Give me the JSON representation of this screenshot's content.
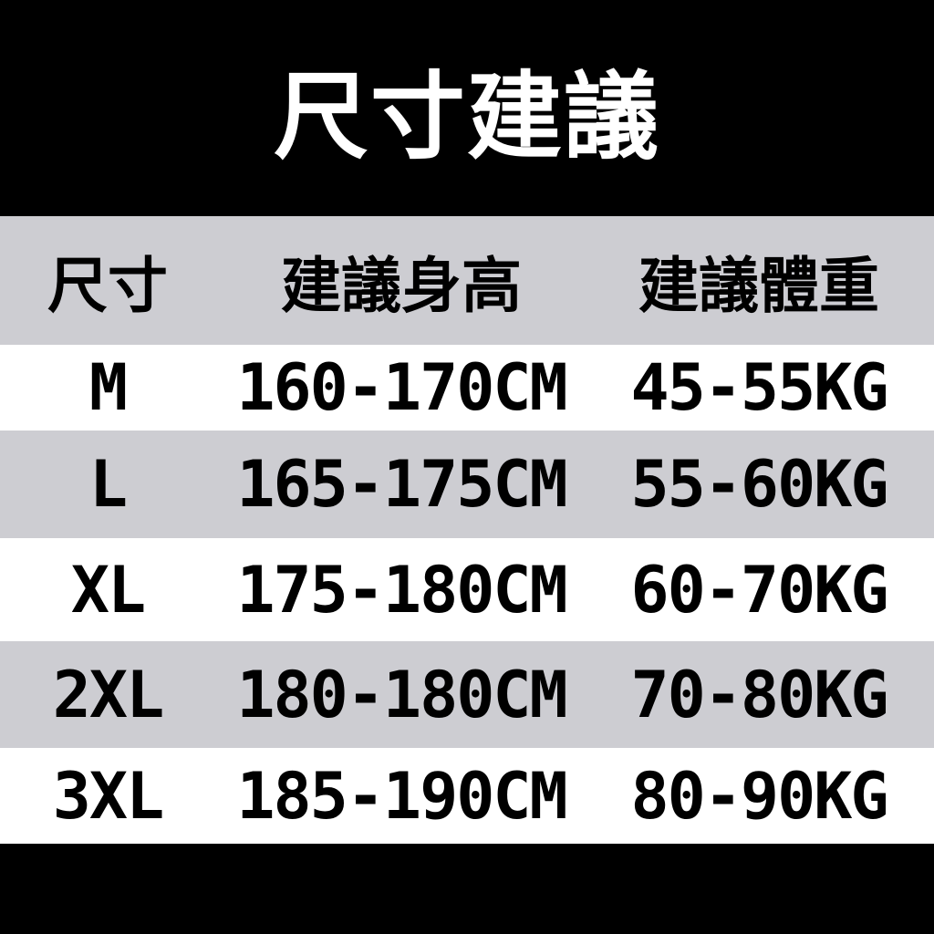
{
  "title": "尺寸建議",
  "headers": [
    "尺寸",
    "建議身高",
    "建議體重"
  ],
  "rows": [
    {
      "size": "M",
      "height": "160-170CM",
      "weight": "45-55KG"
    },
    {
      "size": "L",
      "height": "165-175CM",
      "weight": "55-60KG"
    },
    {
      "size": "XL",
      "height": "175-180CM",
      "weight": "60-70KG"
    },
    {
      "size": "2XL",
      "height": "180-180CM",
      "weight": "70-80KG"
    },
    {
      "size": "3XL",
      "height": "185-190CM",
      "weight": "80-90KG"
    }
  ],
  "colors": {
    "background": "#000000",
    "header_row": "#cdcdd2",
    "alt_row": "#ffffff"
  }
}
